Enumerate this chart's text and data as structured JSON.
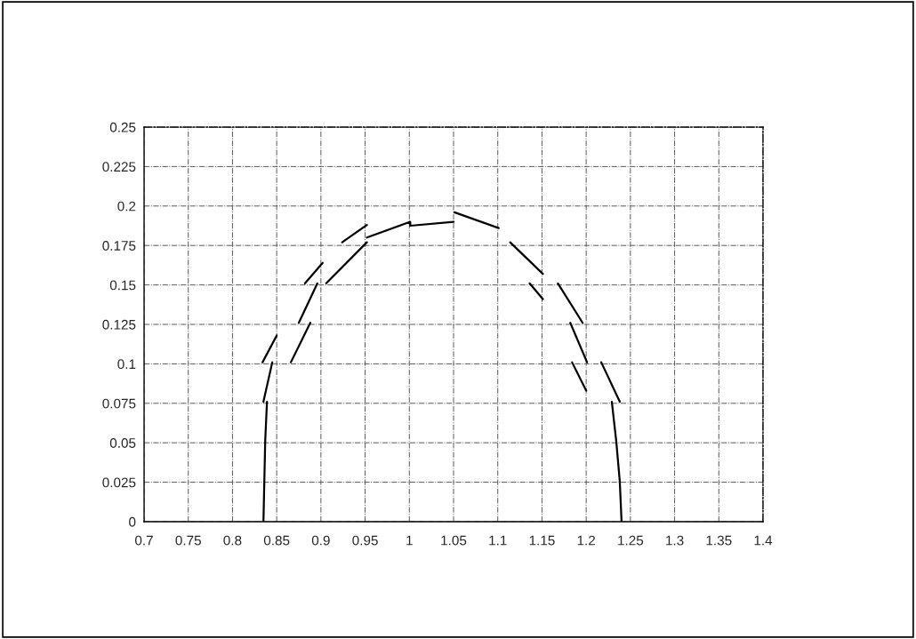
{
  "chart_data": {
    "type": "line",
    "series": [
      {
        "color": "#000000",
        "x": [
          0.835,
          0.837,
          0.839,
          null,
          0.835,
          0.845,
          null,
          0.834,
          0.85,
          null,
          0.866,
          0.888,
          null,
          0.875,
          0.896,
          null,
          0.882,
          0.902,
          null,
          0.906,
          0.952,
          null,
          0.924,
          0.952,
          null,
          0.952,
          1.001,
          1.001,
          1.05,
          null,
          1.051,
          1.101,
          null,
          1.114,
          1.151,
          null,
          1.136,
          1.151,
          null,
          1.168,
          1.196,
          null,
          1.182,
          1.201,
          null,
          1.184,
          1.2,
          null,
          1.217,
          1.238,
          null,
          1.229,
          1.234,
          1.238,
          1.24
        ],
        "values": [
          0,
          0.051,
          0.076,
          null,
          0.076,
          0.101,
          null,
          0.101,
          0.118,
          null,
          0.101,
          0.126,
          null,
          0.126,
          0.151,
          null,
          0.151,
          0.164,
          null,
          0.151,
          0.177,
          null,
          0.177,
          0.188,
          null,
          0.18,
          0.19,
          0.1875,
          0.19,
          null,
          0.196,
          0.186,
          null,
          0.177,
          0.157,
          null,
          0.151,
          0.141,
          null,
          0.151,
          0.126,
          null,
          0.126,
          0.101,
          null,
          0.101,
          0.083,
          null,
          0.101,
          0.076,
          null,
          0.076,
          0.051,
          0.0255,
          0
        ]
      }
    ],
    "xlim": [
      0.7,
      1.4
    ],
    "xticks": [
      0.7,
      0.75,
      0.8,
      0.85,
      0.9,
      0.95,
      1,
      1.05,
      1.1,
      1.15,
      1.2,
      1.25,
      1.3,
      1.35,
      1.4
    ],
    "ylim": [
      0,
      0.25
    ],
    "yticks": [
      0,
      0.025,
      0.05,
      0.075,
      0.1,
      0.125,
      0.15,
      0.175,
      0.2,
      0.225,
      0.25
    ],
    "grid": true,
    "marker": "none",
    "line_style": "solid",
    "legend": false
  }
}
